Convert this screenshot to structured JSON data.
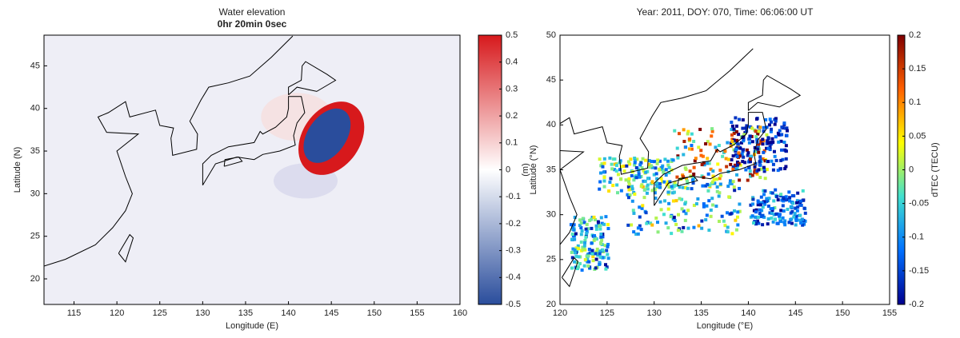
{
  "chart_data": [
    {
      "type": "map",
      "title": "Water elevation",
      "subtitle": "0hr 20min 0sec",
      "x_label": "Longitude (E)",
      "y_label": "Latitude (N)",
      "xlim": [
        111.5,
        160
      ],
      "xticks": [
        115,
        120,
        125,
        130,
        135,
        140,
        145,
        150,
        155,
        160
      ],
      "ylim": [
        17,
        48.6
      ],
      "yticks": [
        20,
        25,
        30,
        35,
        40,
        45
      ],
      "colorbar": {
        "label": "(m)",
        "lim": [
          -0.5,
          0.5
        ],
        "ticks": [
          -0.5,
          -0.4,
          -0.3,
          -0.2,
          -0.1,
          0,
          0.1,
          0.2,
          0.3,
          0.4,
          0.5
        ],
        "colors": [
          "#2a4d9c",
          "#ffffff",
          "#d7191c"
        ]
      }
    },
    {
      "type": "map",
      "title": "Year: 2011, DOY: 070, Time: 06:06:00 UT",
      "x_label": "Longitude (°E)",
      "y_label": "Latitude (°N)",
      "xlim": [
        120,
        155
      ],
      "xticks": [
        120,
        125,
        130,
        135,
        140,
        145,
        150,
        155
      ],
      "ylim": [
        20,
        50
      ],
      "yticks": [
        20,
        25,
        30,
        35,
        40,
        45,
        50
      ],
      "colorbar": {
        "label": "dTEC (TECU)",
        "lim": [
          -0.2,
          0.2
        ],
        "ticks": [
          -0.2,
          -0.15,
          -0.1,
          -0.05,
          0,
          0.05,
          0.1,
          0.15,
          0.2
        ],
        "colors": [
          "#00008f",
          "#0070ff",
          "#40e0d0",
          "#ffff00",
          "#ff6000",
          "#800000"
        ]
      }
    }
  ]
}
